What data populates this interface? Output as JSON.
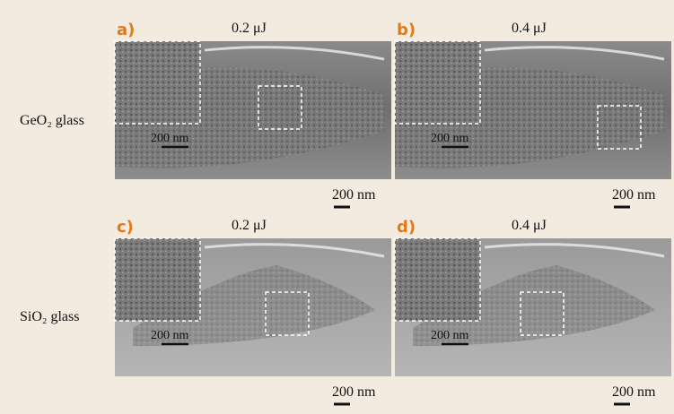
{
  "rows": [
    {
      "label": "GeO₂ glass"
    },
    {
      "label": "SiO₂ glass"
    }
  ],
  "panels": [
    {
      "label": "a)",
      "energy": "0.2 μJ",
      "inset_scale": "200 nm",
      "scale": "200 nm"
    },
    {
      "label": "b)",
      "energy": "0.4 μJ",
      "inset_scale": "200 nm",
      "scale": "200 nm"
    },
    {
      "label": "c)",
      "energy": "0.2 μJ",
      "inset_scale": "200 nm",
      "scale": "200 nm"
    },
    {
      "label": "d)",
      "energy": "0.4 μJ",
      "inset_scale": "200 nm",
      "scale": "200 nm"
    }
  ]
}
